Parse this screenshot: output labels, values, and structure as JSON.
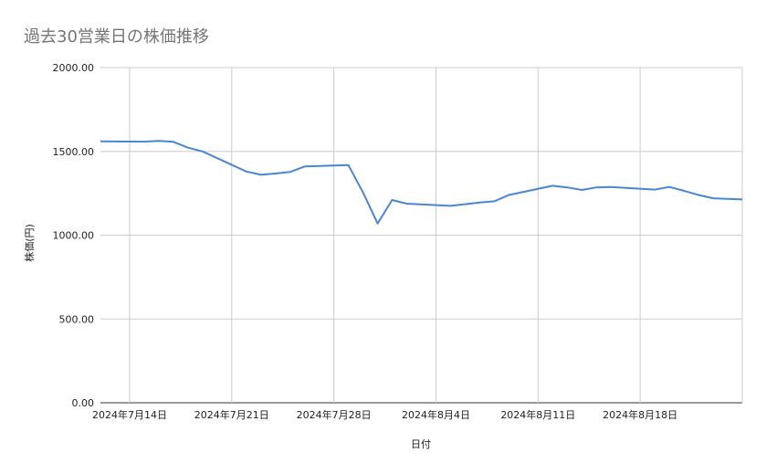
{
  "chart_data": {
    "type": "line",
    "title": "過去30営業日の株価推移",
    "xlabel": "日付",
    "ylabel": "株価(円)",
    "ylim": [
      0,
      2000
    ],
    "y_ticks": [
      "0.00",
      "500.00",
      "1000.00",
      "1500.00",
      "2000.00"
    ],
    "y_tick_values": [
      0,
      500,
      1000,
      1500,
      2000
    ],
    "x_ticks": [
      "2024年7月14日",
      "2024年7月21日",
      "2024年7月28日",
      "2024年8月4日",
      "2024年8月11日",
      "2024年8月18日"
    ],
    "x_tick_dates": [
      "2024-07-14",
      "2024-07-21",
      "2024-07-28",
      "2024-08-04",
      "2024-08-11",
      "2024-08-18"
    ],
    "xlim": [
      "2024-07-12",
      "2024-08-25"
    ],
    "grid": true,
    "legend": "none",
    "line_color": "#4a86d0",
    "series": [
      {
        "x": [
          "2024-07-12",
          "2024-07-15",
          "2024-07-16",
          "2024-07-17",
          "2024-07-18",
          "2024-07-19",
          "2024-07-22",
          "2024-07-23",
          "2024-07-24",
          "2024-07-25",
          "2024-07-26",
          "2024-07-29",
          "2024-07-30",
          "2024-07-31",
          "2024-08-01",
          "2024-08-02",
          "2024-08-05",
          "2024-08-06",
          "2024-08-07",
          "2024-08-08",
          "2024-08-09",
          "2024-08-12",
          "2024-08-13",
          "2024-08-14",
          "2024-08-15",
          "2024-08-16",
          "2024-08-19",
          "2024-08-20",
          "2024-08-21",
          "2024-08-22",
          "2024-08-23",
          "2024-08-26"
        ],
        "values": [
          1560,
          1558,
          1563,
          1557,
          1522,
          1500,
          1380,
          1360,
          1368,
          1377,
          1410,
          1418,
          1255,
          1070,
          1210,
          1188,
          1175,
          1185,
          1195,
          1202,
          1240,
          1295,
          1285,
          1270,
          1285,
          1287,
          1272,
          1288,
          1265,
          1240,
          1220,
          1210
        ]
      }
    ]
  }
}
